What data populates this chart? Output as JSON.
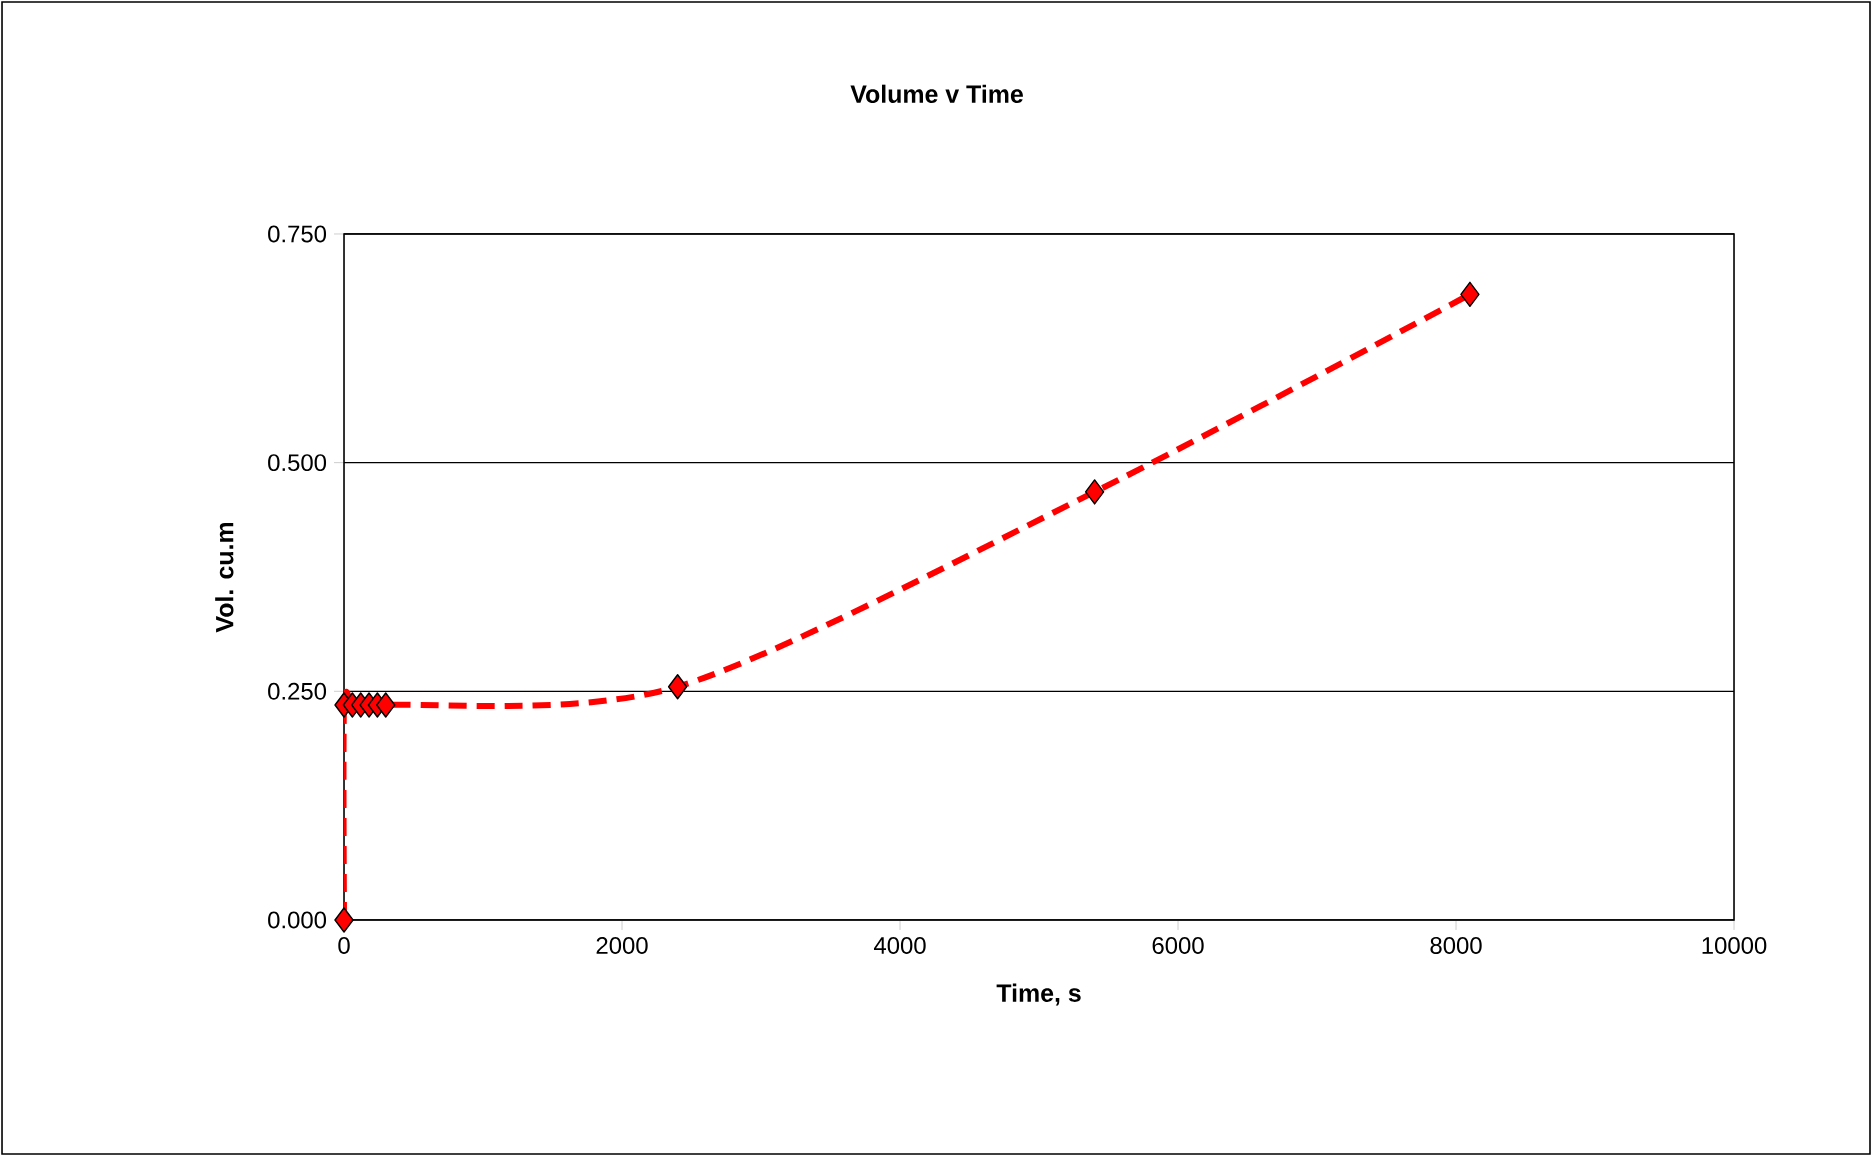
{
  "chart_data": {
    "type": "line",
    "title": "Volume v Time",
    "xlabel": "Time, s",
    "ylabel": "Vol. cu.m",
    "series": [
      {
        "color": "#ff0000",
        "x": [
          0,
          0,
          60,
          120,
          180,
          240,
          300,
          2400,
          5400,
          8100
        ],
        "values": [
          0,
          0.235,
          0.235,
          0.235,
          0.235,
          0.235,
          0.235,
          0.255,
          0.468,
          0.684
        ]
      }
    ],
    "xlim": [
      0,
      10000
    ],
    "xticks": [
      0,
      2000,
      4000,
      6000,
      8000,
      10000
    ],
    "ylim": [
      0,
      0.75
    ],
    "yticks": [
      {
        "value": 0,
        "label": "0.000"
      },
      {
        "value": 0.25,
        "label": "0.250"
      },
      {
        "value": 0.5,
        "label": "0.500"
      },
      {
        "value": 0.75,
        "label": "0.750"
      }
    ],
    "grid": "y",
    "marker": "diamond",
    "line_style": "dashed"
  }
}
